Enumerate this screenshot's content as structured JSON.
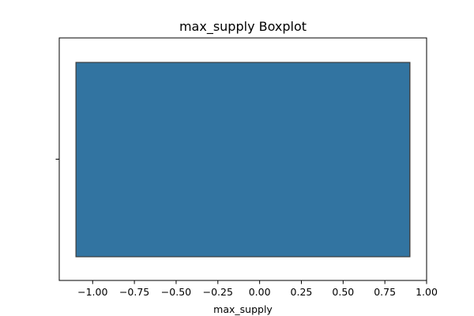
{
  "chart_data": {
    "type": "boxplot",
    "orientation": "horizontal",
    "title": "max_supply Boxplot",
    "xlabel": "max_supply",
    "ylabel": "",
    "xlim": [
      -1.2,
      1.0
    ],
    "xticks": [
      -1.0,
      -0.75,
      -0.5,
      -0.25,
      0.0,
      0.25,
      0.5,
      0.75,
      1.0
    ],
    "xtick_labels": [
      "−1.00",
      "−0.75",
      "−0.50",
      "−0.25",
      "0.00",
      "0.25",
      "0.50",
      "0.75",
      "1.00"
    ],
    "series": [
      {
        "whisker_low": -1.1,
        "q1": -1.1,
        "median": 0.9,
        "q3": 0.9,
        "whisker_high": 0.9,
        "color": "#3274a1"
      }
    ],
    "grid": false,
    "legend": false
  }
}
